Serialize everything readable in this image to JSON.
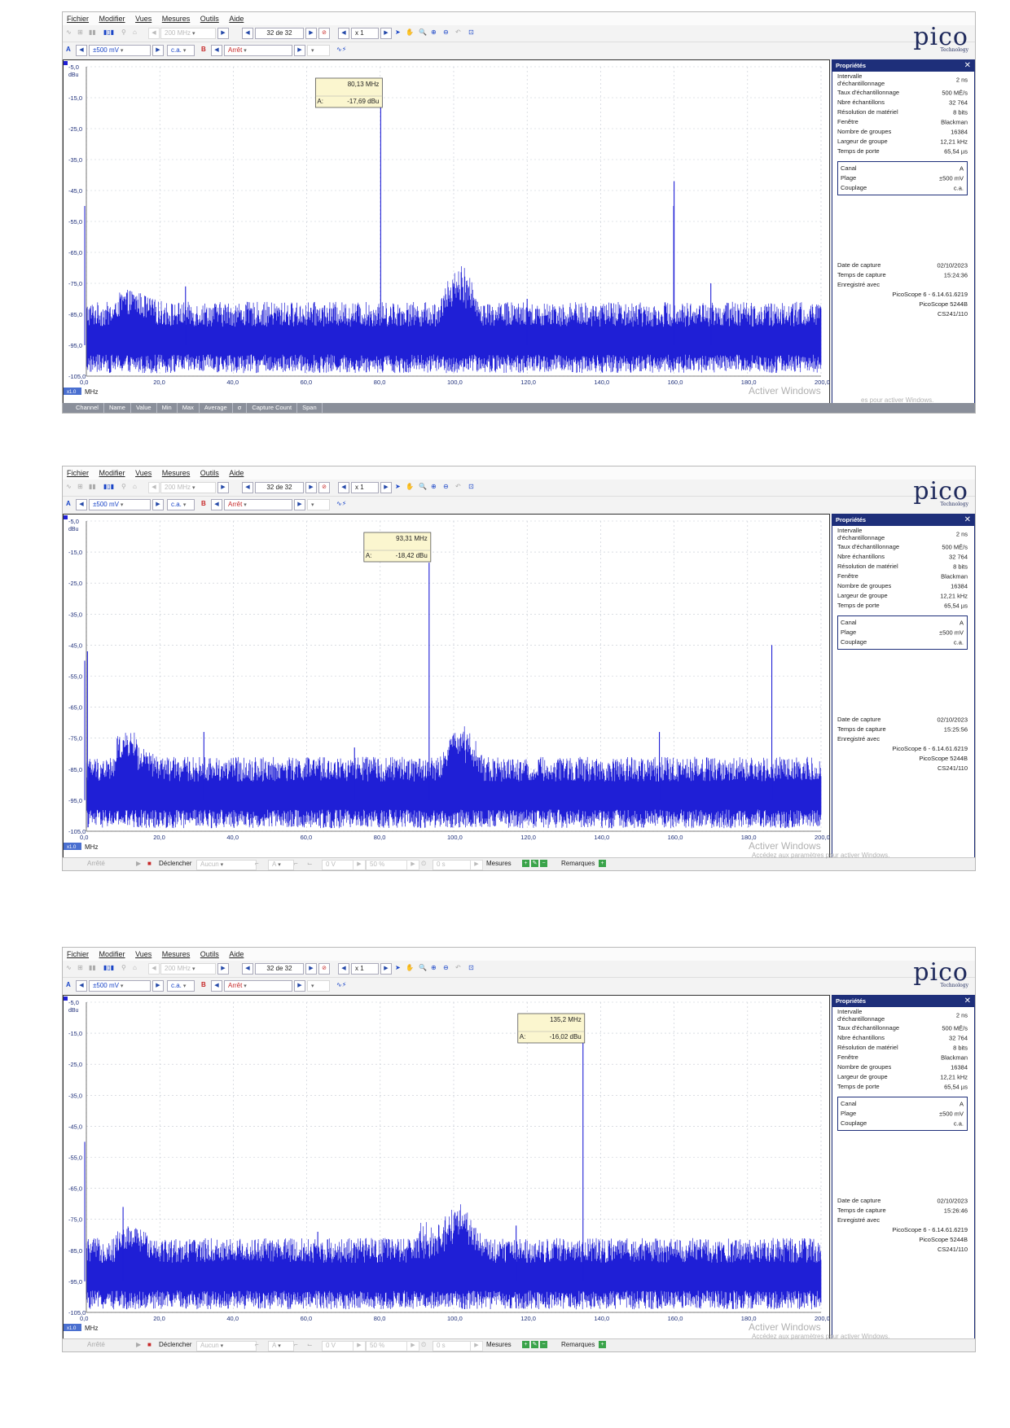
{
  "menu": [
    "Fichier",
    "Modifier",
    "Vues",
    "Mesures",
    "Outils",
    "Aide"
  ],
  "toolbar": {
    "timebase": "200 MHz",
    "capture_counter": "32 de 32",
    "zoom_factor": "x 1",
    "channel_a_label": "A",
    "channel_a_range": "±500 mV",
    "coupling": "c.a.",
    "channel_b_label": "B",
    "channel_b_state": "Arrêt"
  },
  "logo": {
    "word": "pico",
    "sub": "Technology"
  },
  "axes": {
    "y_unit": "dBu",
    "x_unit": "MHz",
    "x_unit_badge": "x1.0",
    "y_ticks": [
      "-5,0",
      "-15,0",
      "-25,0",
      "-35,0",
      "-45,0",
      "-55,0",
      "-65,0",
      "-75,0",
      "-85,0",
      "-95,0",
      "-105,0"
    ],
    "x_ticks": [
      "0,0",
      "20,0",
      "40,0",
      "60,0",
      "80,0",
      "100,0",
      "120,0",
      "140,0",
      "160,0",
      "180,0",
      "200,0"
    ],
    "y_range": [
      -105,
      -5
    ],
    "x_range": [
      0,
      200
    ]
  },
  "properties": {
    "title": "Propriétés",
    "close": "✕",
    "rows": [
      {
        "label": "Intervalle d'échantillonnage",
        "value": "2 ns"
      },
      {
        "label": "Taux d'échantillonnage",
        "value": "500 MÉ/s"
      },
      {
        "label": "Nbre échantillons",
        "value": "32 764"
      },
      {
        "label": "Résolution de matériel",
        "value": "8 bits"
      },
      {
        "label": "Fenêtre",
        "value": "Blackman"
      },
      {
        "label": "Nombre de groupes",
        "value": "16384"
      },
      {
        "label": "Largeur de groupe",
        "value": "12,21 kHz"
      },
      {
        "label": "Temps de porte",
        "value": "65,54 µs"
      }
    ],
    "channel": [
      {
        "label": "Canal",
        "value": "A"
      },
      {
        "label": "Plage",
        "value": "±500 mV"
      },
      {
        "label": "Couplage",
        "value": "c.a."
      }
    ],
    "date_label": "Date de capture",
    "time_label": "Temps de capture",
    "saved_label": "Enregistré avec",
    "saved_lines": [
      "PicoScope 6 - 6.14.61.6219",
      "PicoScope 5244B",
      "CS241/110"
    ]
  },
  "status": {
    "state": "Arrêté",
    "trigger": "Déclencher",
    "trigger_mode": "Aucun",
    "trigger_channel": "A",
    "threshold": "0 V",
    "pretrigger": "50 %",
    "delay": "0 s",
    "measures": "Mesures",
    "remarks": "Remarques"
  },
  "measurements_columns": [
    "Channel",
    "Name",
    "Value",
    "Min",
    "Max",
    "Average",
    "σ",
    "Capture Count",
    "Span"
  ],
  "watermark": {
    "line1": "Activer Windows",
    "line2_full": "Accédez aux paramètres pour activer Windows.",
    "line2_fragment": "es pour activer Windows."
  },
  "screens": [
    {
      "marker": {
        "freq": "80,13 MHz",
        "label": "A:",
        "level": "-17,69 dBu"
      },
      "capture_date": "02/10/2023",
      "capture_time": "15:24:36",
      "chart_data": {
        "type": "line",
        "x": [
          80.13,
          160.0,
          159.9,
          27.0,
          120.0,
          170.0
        ],
        "y": [
          -17.69,
          -42.0,
          -50.0,
          -76.0,
          -80.0,
          -75.0
        ],
        "peaks": [
          {
            "x": 80.13,
            "y": -17.69
          },
          {
            "x": 160.0,
            "y": -42.0
          }
        ],
        "xlim": [
          0,
          200
        ],
        "ylim": [
          -105,
          -5
        ]
      }
    },
    {
      "marker": {
        "freq": "93,31 MHz",
        "label": "A:",
        "level": "-18,42 dBu"
      },
      "capture_date": "02/10/2023",
      "capture_time": "15:25:56",
      "chart_data": {
        "type": "line",
        "x": [
          93.31,
          186.6,
          0.3,
          32.0,
          73.0,
          156.0
        ],
        "y": [
          -18.42,
          -45.0,
          -47.0,
          -73.0,
          -78.0,
          -73.0
        ],
        "peaks": [
          {
            "x": 93.31,
            "y": -18.42
          },
          {
            "x": 186.6,
            "y": -45.0
          }
        ],
        "xlim": [
          0,
          200
        ],
        "ylim": [
          -105,
          -5
        ]
      }
    },
    {
      "marker": {
        "freq": "135,2 MHz",
        "label": "A:",
        "level": "-16,02 dBu"
      },
      "capture_date": "02/10/2023",
      "capture_time": "15:26:46",
      "chart_data": {
        "type": "line",
        "x": [
          135.2,
          10.0,
          63.0,
          117.0
        ],
        "y": [
          -16.02,
          -71.0,
          -79.0,
          -77.0
        ],
        "peaks": [
          {
            "x": 135.2,
            "y": -16.02
          }
        ],
        "xlim": [
          0,
          200
        ],
        "ylim": [
          -105,
          -5
        ]
      }
    }
  ]
}
